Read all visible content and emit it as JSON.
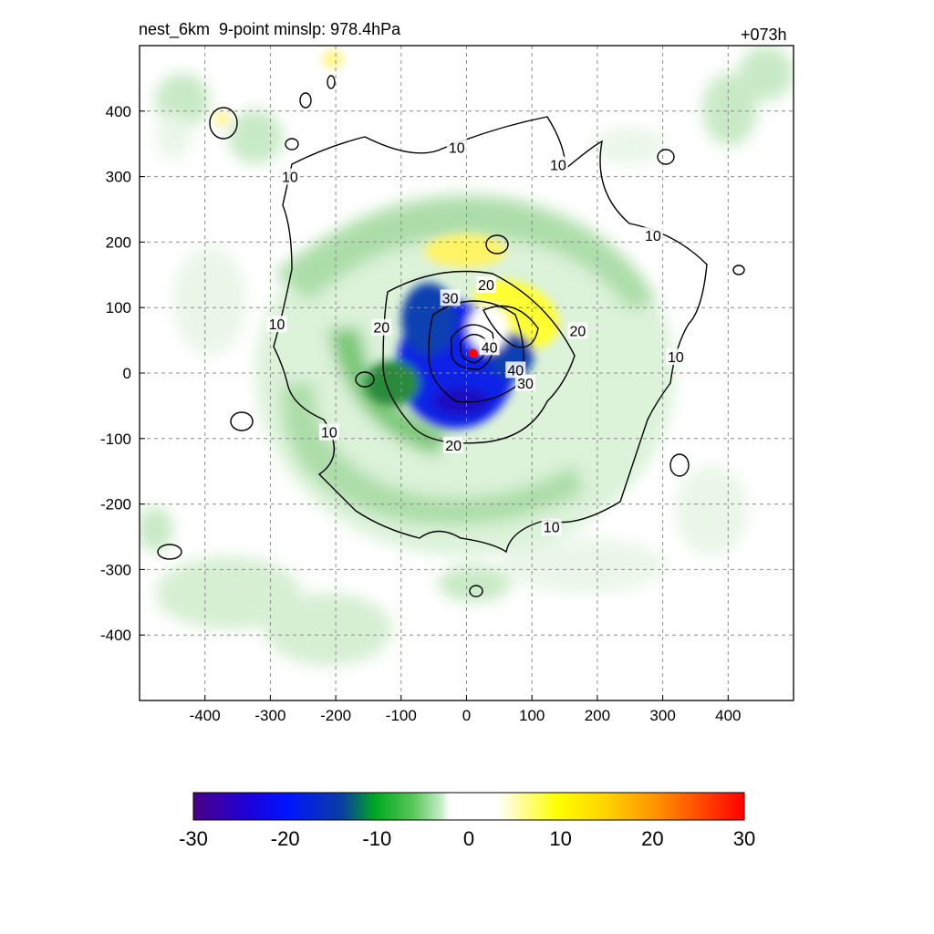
{
  "chart_data": {
    "type": "contour",
    "title": "nest_6km  9-point minslp: 978.4hPa",
    "forecast_hour": "+073h",
    "xlim": [
      -500,
      500
    ],
    "ylim": [
      -500,
      500
    ],
    "x_ticks": [
      -400,
      -300,
      -200,
      -100,
      0,
      100,
      200,
      300,
      400
    ],
    "y_ticks": [
      400,
      300,
      200,
      100,
      0,
      -100,
      -200,
      -300,
      -400
    ],
    "grid": true,
    "contour_levels": [
      10,
      20,
      30,
      40
    ],
    "contour_labels": [
      {
        "text": "10",
        "x": -15,
        "y": 345
      },
      {
        "text": "10",
        "x": 140,
        "y": 318
      },
      {
        "text": "10",
        "x": -270,
        "y": 300
      },
      {
        "text": "10",
        "x": 285,
        "y": 210
      },
      {
        "text": "10",
        "x": -290,
        "y": 75
      },
      {
        "text": "10",
        "x": 320,
        "y": 25
      },
      {
        "text": "10",
        "x": -210,
        "y": -90
      },
      {
        "text": "10",
        "x": 130,
        "y": -235
      },
      {
        "text": "20",
        "x": 30,
        "y": 135
      },
      {
        "text": "20",
        "x": -130,
        "y": 70
      },
      {
        "text": "20",
        "x": 170,
        "y": 65
      },
      {
        "text": "20",
        "x": -20,
        "y": -110
      },
      {
        "text": "30",
        "x": -25,
        "y": 115
      },
      {
        "text": "30",
        "x": 90,
        "y": -15
      },
      {
        "text": "40",
        "x": 35,
        "y": 40
      },
      {
        "text": "40",
        "x": 75,
        "y": 5
      }
    ],
    "center_marker": {
      "x": 10,
      "y": 30,
      "color": "#ff0000"
    },
    "colorbar": {
      "ticks": [
        -30,
        -20,
        -10,
        0,
        10,
        20,
        30
      ],
      "range": [
        -30,
        30
      ]
    }
  }
}
